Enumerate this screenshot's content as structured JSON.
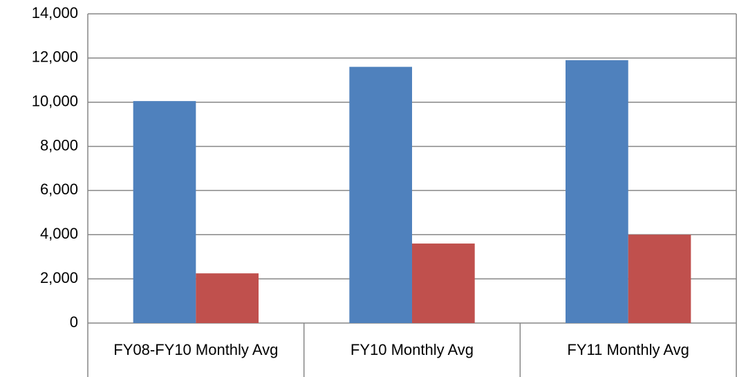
{
  "chart_data": {
    "type": "bar",
    "categories": [
      "FY08-FY10 Monthly Avg",
      "FY10 Monthly Avg",
      "FY11 Monthly Avg"
    ],
    "series": [
      {
        "color": "#4f81bd",
        "values": [
          10050,
          11600,
          11900
        ]
      },
      {
        "color": "#c0504d",
        "values": [
          2250,
          3600,
          4000
        ]
      }
    ],
    "ylim": [
      0,
      14000
    ],
    "yticks": [
      {
        "value": 0,
        "label": "0"
      },
      {
        "value": 2000,
        "label": "2,000"
      },
      {
        "value": 4000,
        "label": "4,000"
      },
      {
        "value": 6000,
        "label": "6,000"
      },
      {
        "value": 8000,
        "label": "8,000"
      },
      {
        "value": 10000,
        "label": "10,000"
      },
      {
        "value": 12000,
        "label": "12,000"
      },
      {
        "value": 14000,
        "label": "14,000"
      }
    ],
    "grid": true
  }
}
